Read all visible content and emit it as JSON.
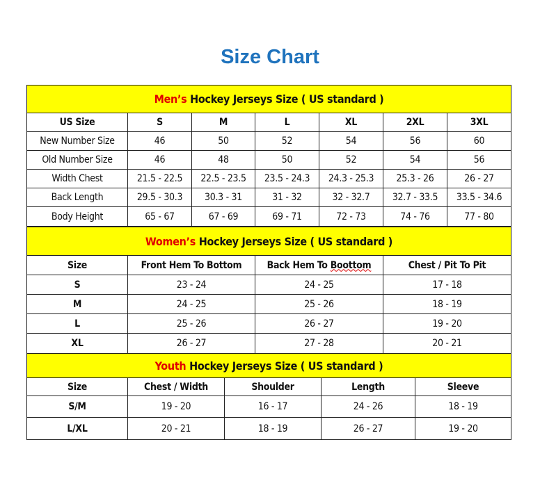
{
  "title": "Size Chart",
  "colors": {
    "title": "#1f73bd",
    "header_bg": "#ffff00",
    "accent_red": "#e00000"
  },
  "mens": {
    "header_prefix": "Men’s",
    "header_rest": " Hockey Jerseys Size ( US standard )",
    "columns": [
      "US Size",
      "S",
      "M",
      "L",
      "XL",
      "2XL",
      "3XL"
    ],
    "rows": [
      [
        "New Number Size",
        "46",
        "50",
        "52",
        "54",
        "56",
        "60"
      ],
      [
        "Old Number Size",
        "46",
        "48",
        "50",
        "52",
        "54",
        "56"
      ],
      [
        "Width Chest",
        "21.5 - 22.5",
        "22.5 - 23.5",
        "23.5 - 24.3",
        "24.3 - 25.3",
        "25.3 - 26",
        "26 - 27"
      ],
      [
        "Back Length",
        "29.5 - 30.3",
        "30.3 - 31",
        "31 - 32",
        "32 - 32.7",
        "32.7 - 33.5",
        "33.5 - 34.6"
      ],
      [
        "Body Height",
        "65 - 67",
        "67 - 69",
        "69 - 71",
        "72 - 73",
        "74 - 76",
        "77 - 80"
      ]
    ]
  },
  "womens": {
    "header_prefix": "Women’s",
    "header_rest": " Hockey Jerseys Size ( US standard )",
    "columns": [
      "Size",
      "Front Hem To Bottom",
      "Back Hem To Boottom",
      "Chest / Pit To Pit"
    ],
    "rows": [
      [
        "S",
        "23 - 24",
        "24 - 25",
        "17 - 18"
      ],
      [
        "M",
        "24 - 25",
        "25 - 26",
        "18 - 19"
      ],
      [
        "L",
        "25 - 26",
        "26 - 27",
        "19 - 20"
      ],
      [
        "XL",
        "26 - 27",
        "27 - 28",
        "20 - 21"
      ]
    ]
  },
  "youth": {
    "header_prefix": "Youth",
    "header_rest": " Hockey Jerseys Size ( US standard )",
    "columns": [
      "Size",
      "Chest / Width",
      "Shoulder",
      "Length",
      "Sleeve"
    ],
    "rows": [
      [
        "S/M",
        "19 - 20",
        "16 - 17",
        "24 - 26",
        "18 - 19"
      ],
      [
        "L/XL",
        "20 - 21",
        "18 - 19",
        "26 - 27",
        "19 - 20"
      ]
    ]
  }
}
